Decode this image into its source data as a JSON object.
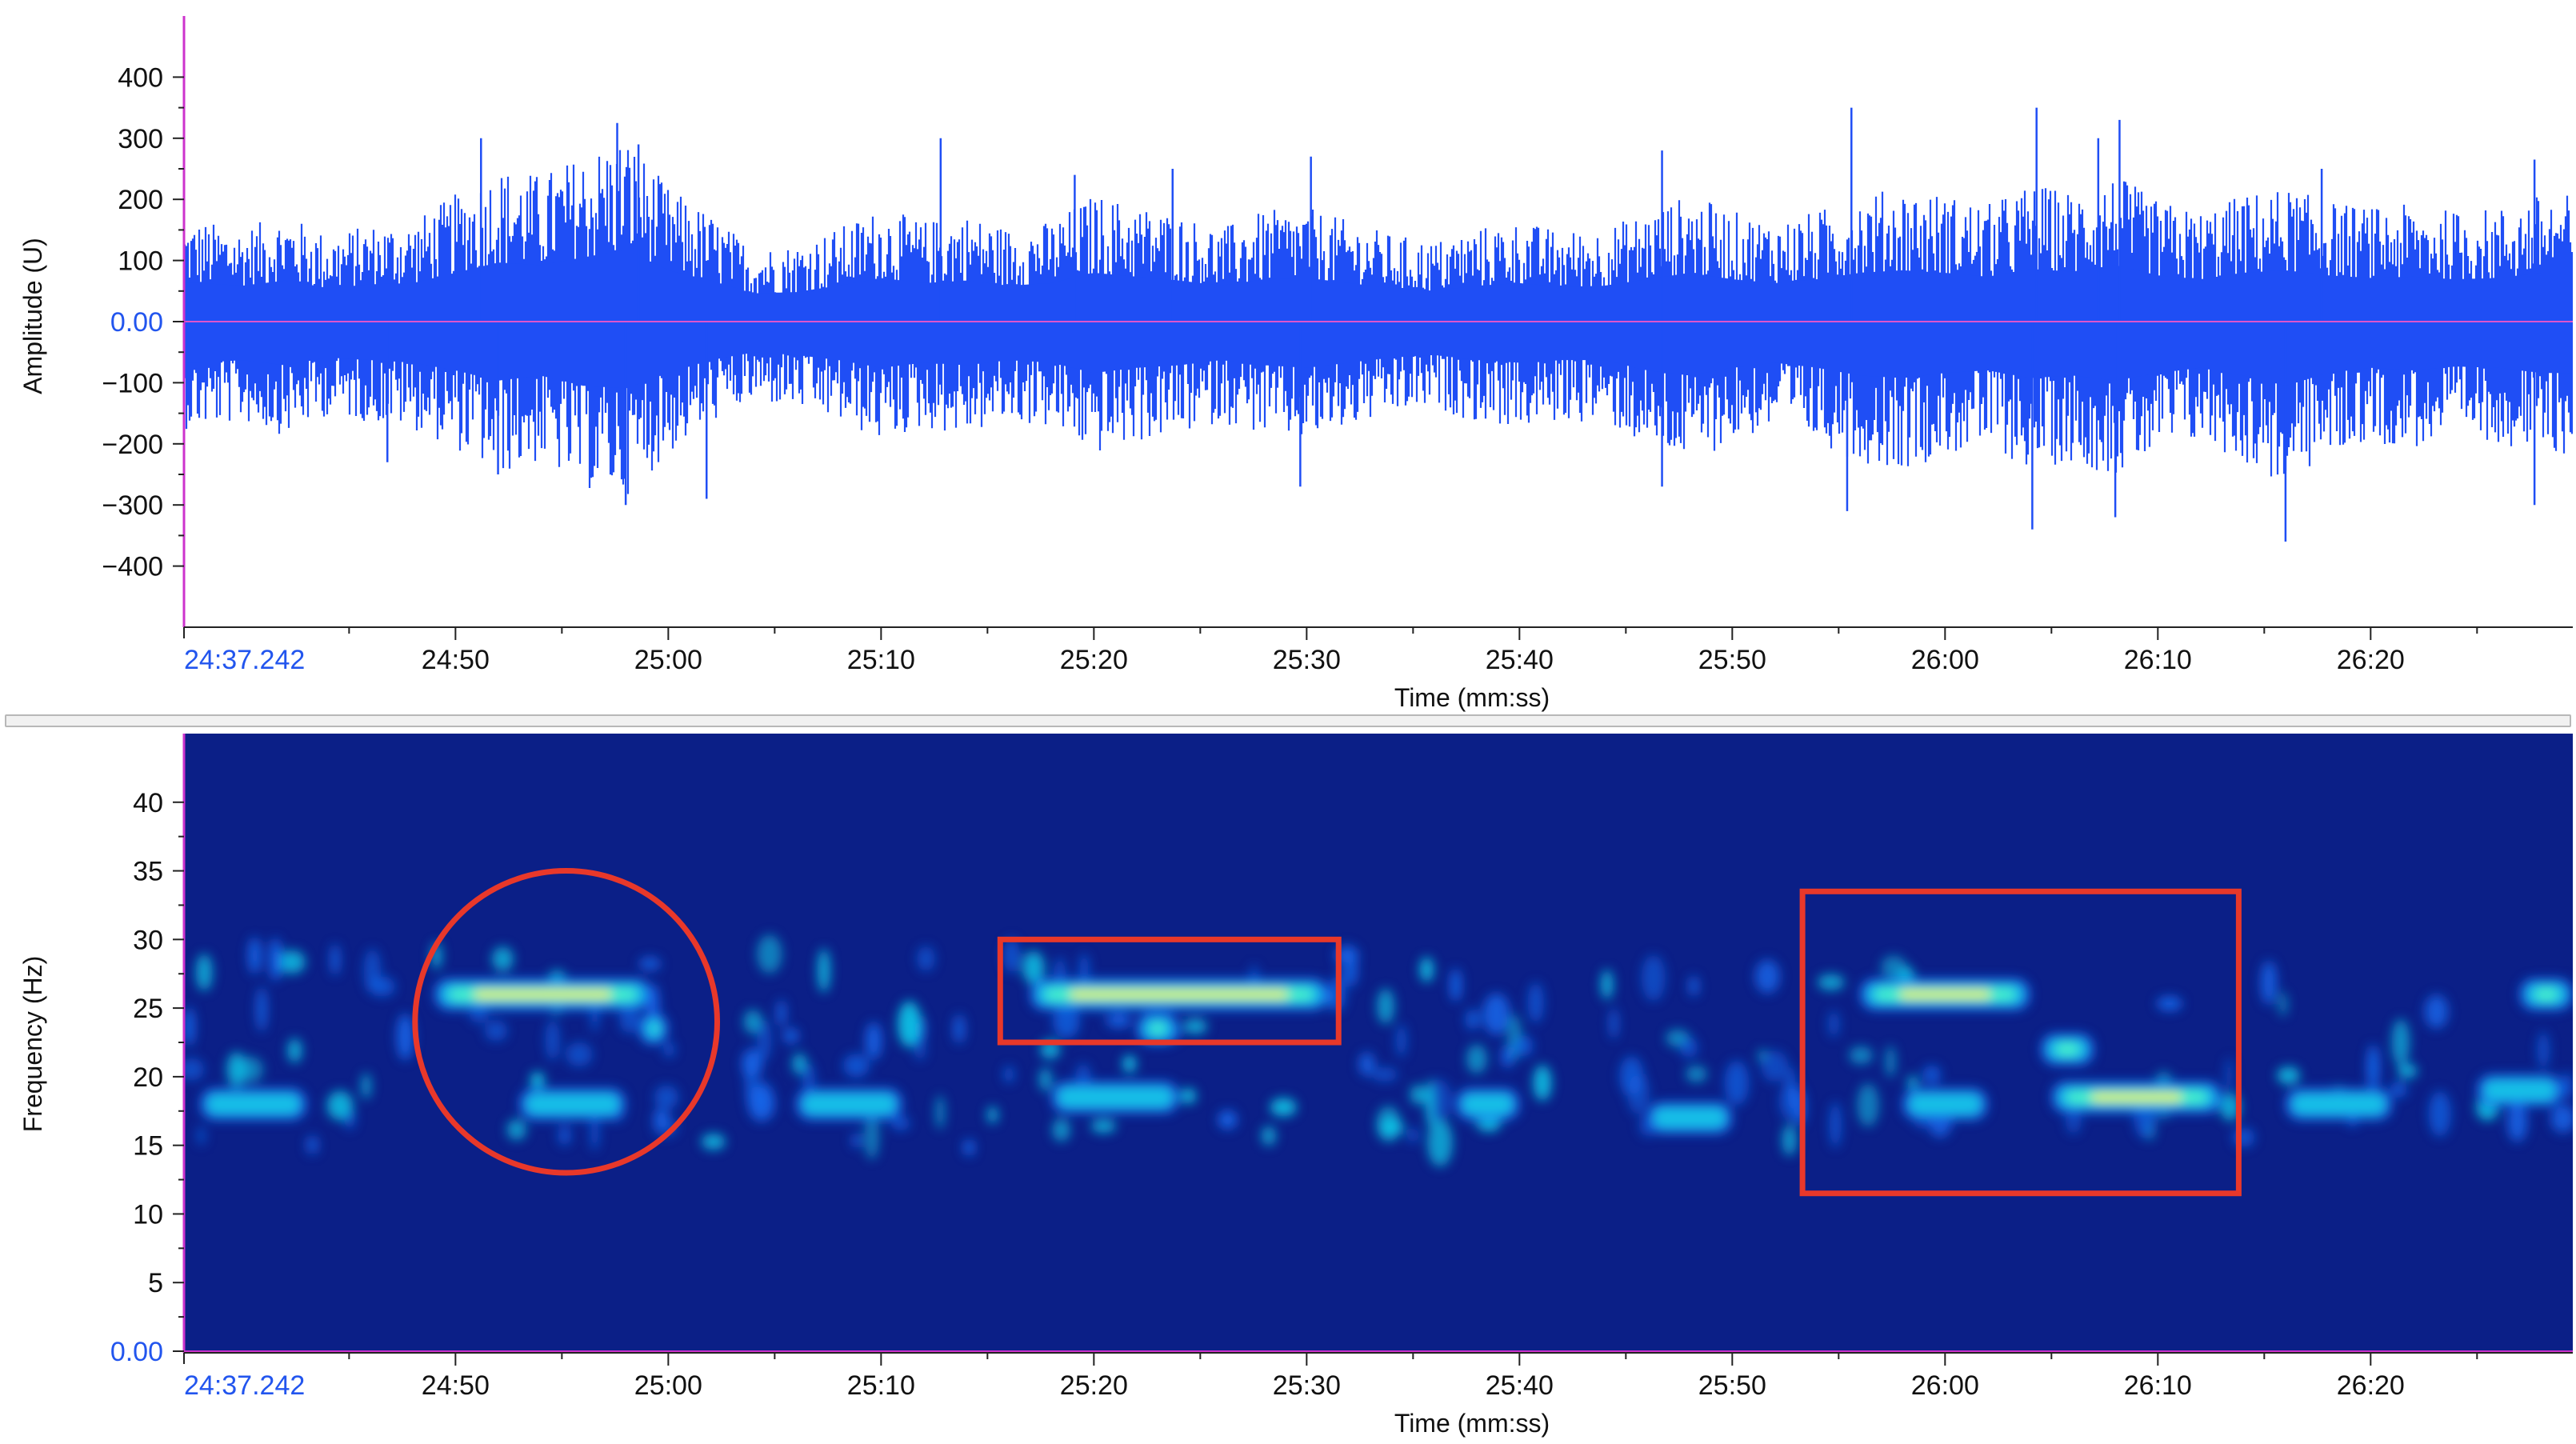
{
  "chart_data": [
    {
      "type": "line",
      "xlabel": "Time (mm:ss)",
      "ylabel": "Amplitude (U)",
      "ylim": [
        -500,
        500
      ],
      "y_ticks": [
        "400",
        "300",
        "200",
        "100",
        "0.00",
        "−100",
        "−200",
        "−300",
        "−400"
      ],
      "y_tick_values": [
        400,
        300,
        200,
        100,
        0,
        -100,
        -200,
        -300,
        -400
      ],
      "x_start_label": "24:37.242",
      "x_ticks": [
        "24:50",
        "25:00",
        "25:10",
        "25:20",
        "25:30",
        "25:40",
        "25:50",
        "26:00",
        "26:10",
        "26:20"
      ],
      "x_tick_values_sec": [
        1490,
        1500,
        1510,
        1520,
        1530,
        1540,
        1550,
        1560,
        1570,
        1580
      ],
      "xlim_sec": [
        1477.242,
        1589.5
      ],
      "series": [
        {
          "description": "waveform envelope",
          "color": "#1f4ef5",
          "x_sec": [
            1478,
            1480,
            1482,
            1484,
            1486,
            1488,
            1490,
            1492,
            1494,
            1496,
            1498,
            1500,
            1502,
            1504,
            1506,
            1508,
            1510,
            1512,
            1514,
            1516,
            1518,
            1520,
            1522,
            1524,
            1526,
            1528,
            1530,
            1532,
            1534,
            1536,
            1538,
            1540,
            1542,
            1544,
            1546,
            1548,
            1550,
            1552,
            1554,
            1556,
            1558,
            1560,
            1562,
            1564,
            1566,
            1568,
            1570,
            1572,
            1574,
            1576,
            1578,
            1580,
            1582,
            1584,
            1586,
            1588
          ],
          "upper": [
            150,
            140,
            160,
            130,
            145,
            150,
            190,
            230,
            220,
            250,
            280,
            200,
            160,
            110,
            115,
            140,
            170,
            150,
            160,
            140,
            150,
            190,
            175,
            160,
            140,
            165,
            170,
            150,
            130,
            120,
            140,
            150,
            135,
            140,
            165,
            190,
            165,
            150,
            165,
            190,
            200,
            190,
            175,
            205,
            195,
            220,
            180,
            165,
            190,
            200,
            180,
            170,
            175,
            165,
            170,
            190
          ],
          "lower": [
            -160,
            -150,
            -170,
            -140,
            -150,
            -160,
            -190,
            -230,
            -210,
            -250,
            -260,
            -200,
            -150,
            -120,
            -130,
            -150,
            -180,
            -160,
            -170,
            -150,
            -160,
            -200,
            -180,
            -170,
            -150,
            -170,
            -180,
            -160,
            -140,
            -130,
            -150,
            -160,
            -150,
            -150,
            -190,
            -210,
            -180,
            -160,
            -180,
            -210,
            -220,
            -200,
            -190,
            -220,
            -210,
            -230,
            -200,
            -180,
            -210,
            -250,
            -200,
            -180,
            -190,
            -175,
            -180,
            -200
          ],
          "peaks": [
            {
              "x_sec": 1486.8,
              "y": -230
            },
            {
              "x_sec": 1491.2,
              "y": 300
            },
            {
              "x_sec": 1492,
              "y": -250
            },
            {
              "x_sec": 1497.6,
              "y": 325
            },
            {
              "x_sec": 1498.6,
              "y": 290
            },
            {
              "x_sec": 1498.0,
              "y": -300
            },
            {
              "x_sec": 1501.8,
              "y": -290
            },
            {
              "x_sec": 1512.8,
              "y": 300
            },
            {
              "x_sec": 1519.1,
              "y": 240
            },
            {
              "x_sec": 1523.7,
              "y": 250
            },
            {
              "x_sec": 1529.7,
              "y": -270
            },
            {
              "x_sec": 1530.2,
              "y": 270
            },
            {
              "x_sec": 1546.7,
              "y": 280
            },
            {
              "x_sec": 1546.7,
              "y": -270
            },
            {
              "x_sec": 1555.6,
              "y": 350
            },
            {
              "x_sec": 1555.4,
              "y": -310
            },
            {
              "x_sec": 1564.3,
              "y": 350
            },
            {
              "x_sec": 1564.1,
              "y": -340
            },
            {
              "x_sec": 1567.2,
              "y": 300
            },
            {
              "x_sec": 1568.2,
              "y": 330
            },
            {
              "x_sec": 1568.0,
              "y": -320
            },
            {
              "x_sec": 1576.0,
              "y": -360
            },
            {
              "x_sec": 1577.7,
              "y": 250
            },
            {
              "x_sec": 1587.7,
              "y": 265
            },
            {
              "x_sec": 1587.7,
              "y": -300
            }
          ]
        }
      ],
      "zero_line_color": "#dd55cc"
    },
    {
      "type": "heatmap",
      "xlabel": "Time (mm:ss)",
      "ylabel": "Frequency (Hz)",
      "ylim": [
        0,
        45
      ],
      "y_ticks": [
        "40",
        "35",
        "30",
        "25",
        "20",
        "15",
        "10",
        "5",
        "0.00"
      ],
      "y_tick_values": [
        40,
        35,
        30,
        25,
        20,
        15,
        10,
        5,
        0
      ],
      "x_start_label": "24:37.242",
      "x_ticks": [
        "24:50",
        "25:00",
        "25:10",
        "25:20",
        "25:30",
        "25:40",
        "25:50",
        "26:00",
        "26:10",
        "26:20"
      ],
      "x_tick_values_sec": [
        1490,
        1500,
        1510,
        1520,
        1530,
        1540,
        1550,
        1560,
        1570,
        1580
      ],
      "xlim_sec": [
        1477.242,
        1589.5
      ],
      "background_color": "#0b1f87",
      "colormap": [
        "#0b1f87",
        "#1565e8",
        "#12c4e6",
        "#48f2c8",
        "#e9f53c"
      ],
      "energy_blobs": [
        {
          "x0_sec": 1489,
          "x1_sec": 1499.2,
          "f_hz": 26.0,
          "intensity": 1.0
        },
        {
          "x0_sec": 1498.6,
          "x1_sec": 1500,
          "f_hz": 23.5,
          "intensity": 0.6
        },
        {
          "x0_sec": 1517,
          "x1_sec": 1531,
          "f_hz": 26.0,
          "intensity": 0.9
        },
        {
          "x0_sec": 1522,
          "x1_sec": 1524,
          "f_hz": 23.5,
          "intensity": 0.6
        },
        {
          "x0_sec": 1556,
          "x1_sec": 1564,
          "f_hz": 26.0,
          "intensity": 0.85
        },
        {
          "x0_sec": 1564.5,
          "x1_sec": 1567,
          "f_hz": 22.0,
          "intensity": 0.6
        },
        {
          "x0_sec": 1565,
          "x1_sec": 1573,
          "f_hz": 18.5,
          "intensity": 0.9
        },
        {
          "x0_sec": 1587,
          "x1_sec": 1589.5,
          "f_hz": 26.0,
          "intensity": 0.8
        },
        {
          "x0_sec": 1478,
          "x1_sec": 1483,
          "f_hz": 18.0,
          "intensity": 0.45
        },
        {
          "x0_sec": 1493,
          "x1_sec": 1498,
          "f_hz": 18.0,
          "intensity": 0.5
        },
        {
          "x0_sec": 1506,
          "x1_sec": 1511,
          "f_hz": 18.0,
          "intensity": 0.5
        },
        {
          "x0_sec": 1518,
          "x1_sec": 1524,
          "f_hz": 18.5,
          "intensity": 0.55
        },
        {
          "x0_sec": 1537,
          "x1_sec": 1540,
          "f_hz": 18.0,
          "intensity": 0.35
        },
        {
          "x0_sec": 1546,
          "x1_sec": 1550,
          "f_hz": 17.0,
          "intensity": 0.55
        },
        {
          "x0_sec": 1558,
          "x1_sec": 1562,
          "f_hz": 18.0,
          "intensity": 0.45
        },
        {
          "x0_sec": 1576,
          "x1_sec": 1581,
          "f_hz": 18.0,
          "intensity": 0.5
        },
        {
          "x0_sec": 1585,
          "x1_sec": 1589,
          "f_hz": 19.0,
          "intensity": 0.5
        }
      ],
      "annotations": [
        {
          "shape": "circle",
          "color": "#e8382a",
          "cx_sec": 1495.2,
          "cy_hz": 24.0,
          "rx_sec": 7.1,
          "ry_hz": 11.0
        },
        {
          "shape": "rectangle",
          "color": "#e8382a",
          "x0_sec": 1515.6,
          "x1_sec": 1531.5,
          "f0_hz": 22.5,
          "f1_hz": 30.0
        },
        {
          "shape": "rectangle",
          "color": "#e8382a",
          "x0_sec": 1553.3,
          "x1_sec": 1573.8,
          "f0_hz": 11.5,
          "f1_hz": 33.5
        }
      ]
    }
  ]
}
